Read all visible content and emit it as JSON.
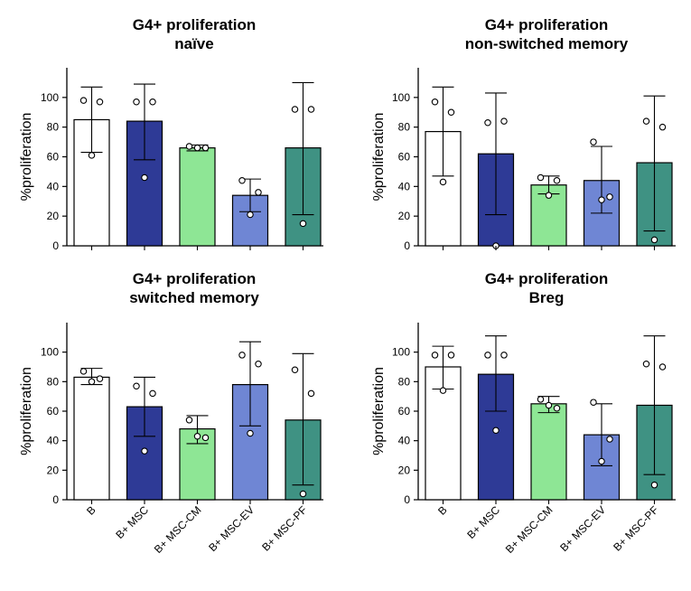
{
  "figure": {
    "categories": [
      "B",
      "B+ MSC",
      "B+ MSC-CM",
      "B+ MSC-EV",
      "B+ MSC-PF"
    ],
    "colors": [
      "#ffffff",
      "#2e3a96",
      "#8ee695",
      "#6f86d4",
      "#3f9283"
    ]
  },
  "chart_data": [
    {
      "type": "bar",
      "title": [
        "G4+ proliferation",
        "naïve"
      ],
      "xlabel": "",
      "ylabel": "%proliferation",
      "ylim": [
        0,
        120
      ],
      "yticks": [
        0,
        20,
        40,
        60,
        80,
        100
      ],
      "categories": [
        "B",
        "B+ MSC",
        "B+ MSC-CM",
        "B+ MSC-EV",
        "B+ MSC-PF"
      ],
      "show_xtick_labels": false,
      "values": [
        85,
        84,
        66,
        34,
        66
      ],
      "error": [
        [
          63,
          107
        ],
        [
          58,
          109
        ],
        [
          64,
          68
        ],
        [
          23,
          45
        ],
        [
          21,
          110
        ]
      ],
      "points": [
        [
          98,
          97,
          61
        ],
        [
          97,
          97,
          46
        ],
        [
          67,
          66,
          66
        ],
        [
          44,
          36,
          21
        ],
        [
          92,
          92,
          15
        ]
      ]
    },
    {
      "type": "bar",
      "title": [
        "G4+ proliferation",
        "non-switched memory"
      ],
      "xlabel": "",
      "ylabel": "%proliferation",
      "ylim": [
        0,
        120
      ],
      "yticks": [
        0,
        20,
        40,
        60,
        80,
        100
      ],
      "categories": [
        "B",
        "B+ MSC",
        "B+ MSC-CM",
        "B+ MSC-EV",
        "B+ MSC-PF"
      ],
      "show_xtick_labels": false,
      "values": [
        77,
        62,
        41,
        44,
        56
      ],
      "error": [
        [
          47,
          107
        ],
        [
          21,
          103
        ],
        [
          35,
          47
        ],
        [
          22,
          67
        ],
        [
          10,
          101
        ]
      ],
      "points": [
        [
          97,
          90,
          43
        ],
        [
          83,
          84,
          0
        ],
        [
          46,
          44,
          34
        ],
        [
          70,
          33,
          31
        ],
        [
          84,
          80,
          4
        ]
      ]
    },
    {
      "type": "bar",
      "title": [
        "G4+ proliferation",
        "switched memory"
      ],
      "xlabel": "",
      "ylabel": "%proliferation",
      "ylim": [
        0,
        120
      ],
      "yticks": [
        0,
        20,
        40,
        60,
        80,
        100
      ],
      "categories": [
        "B",
        "B+ MSC",
        "B+ MSC-CM",
        "B+ MSC-EV",
        "B+ MSC-PF"
      ],
      "show_xtick_labels": true,
      "values": [
        83,
        63,
        48,
        78,
        54
      ],
      "error": [
        [
          78,
          89
        ],
        [
          43,
          83
        ],
        [
          38,
          57
        ],
        [
          50,
          107
        ],
        [
          10,
          99
        ]
      ],
      "points": [
        [
          87,
          82,
          80
        ],
        [
          77,
          72,
          33
        ],
        [
          54,
          42,
          43
        ],
        [
          98,
          92,
          45
        ],
        [
          88,
          72,
          4
        ]
      ]
    },
    {
      "type": "bar",
      "title": [
        "G4+ proliferation",
        "Breg"
      ],
      "xlabel": "",
      "ylabel": "%proliferation",
      "ylim": [
        0,
        120
      ],
      "yticks": [
        0,
        20,
        40,
        60,
        80,
        100
      ],
      "categories": [
        "B",
        "B+ MSC",
        "B+ MSC-CM",
        "B+ MSC-EV",
        "B+ MSC-PF"
      ],
      "show_xtick_labels": true,
      "values": [
        90,
        85,
        65,
        44,
        64
      ],
      "error": [
        [
          75,
          104
        ],
        [
          60,
          111
        ],
        [
          59,
          70
        ],
        [
          23,
          65
        ],
        [
          17,
          111
        ]
      ],
      "points": [
        [
          98,
          98,
          74
        ],
        [
          98,
          98,
          47
        ],
        [
          68,
          62,
          64
        ],
        [
          66,
          41,
          26
        ],
        [
          92,
          90,
          10
        ]
      ]
    }
  ]
}
